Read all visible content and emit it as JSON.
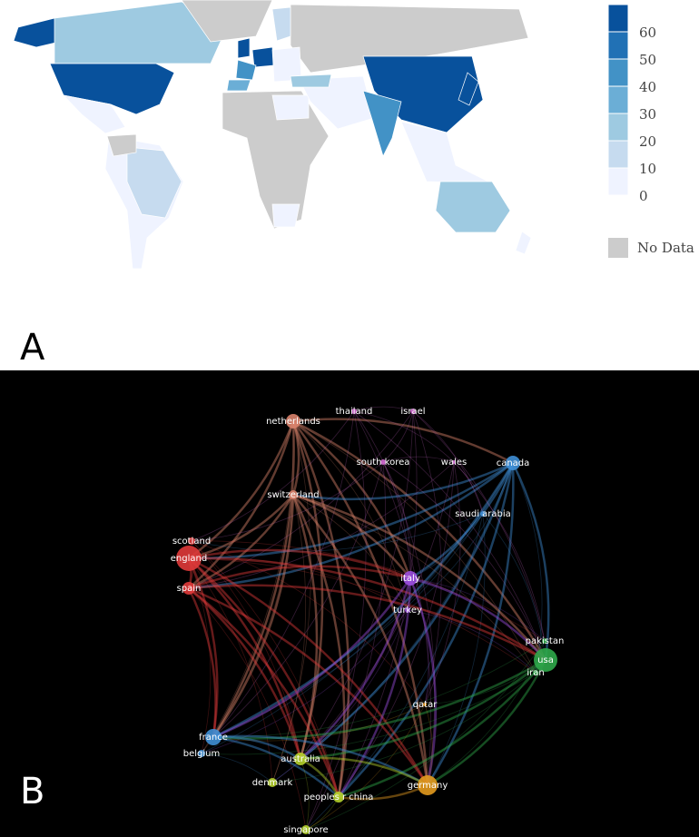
{
  "panels": [
    "A",
    "B"
  ],
  "legend": {
    "ticks": [
      60,
      50,
      40,
      30,
      20,
      10,
      0
    ],
    "colors": [
      "#08519c",
      "#2171b5",
      "#4292c6",
      "#6baed6",
      "#9ecae1",
      "#c6dbef",
      "#eff3ff"
    ],
    "no_data": {
      "label": "No Data",
      "color": "#cccccc"
    }
  },
  "network": {
    "nodes": [
      {
        "label": "netherlands",
        "color": "#d9826b"
      },
      {
        "label": "thailand",
        "color": "#d36ad3"
      },
      {
        "label": "israel",
        "color": "#d36ad3"
      },
      {
        "label": "canada",
        "color": "#3f8fd6"
      },
      {
        "label": "south korea",
        "color": "#d36ad3"
      },
      {
        "label": "wales",
        "color": "#d36ad3"
      },
      {
        "label": "switzerland",
        "color": "#d9826b"
      },
      {
        "label": "saudi arabia",
        "color": "#3f8fd6"
      },
      {
        "label": "scotland",
        "color": "#e03a3a"
      },
      {
        "label": "england",
        "color": "#e03a3a"
      },
      {
        "label": "spain",
        "color": "#e03a3a"
      },
      {
        "label": "italy",
        "color": "#9b4ee0"
      },
      {
        "label": "turkey",
        "color": "#9b4ee0"
      },
      {
        "label": "pakistan",
        "color": "#2fa84a"
      },
      {
        "label": "usa",
        "color": "#2fa84a"
      },
      {
        "label": "iran",
        "color": "#2fa84a"
      },
      {
        "label": "qatar",
        "color": "#e39a1e"
      },
      {
        "label": "france",
        "color": "#3f8fd6"
      },
      {
        "label": "belgium",
        "color": "#3f8fd6"
      },
      {
        "label": "australia",
        "color": "#b5d22c"
      },
      {
        "label": "germany",
        "color": "#e39a1e"
      },
      {
        "label": "denmark",
        "color": "#b5d22c"
      },
      {
        "label": "peoples r china",
        "color": "#b5d22c"
      },
      {
        "label": "singapore",
        "color": "#b5d22c"
      }
    ]
  }
}
